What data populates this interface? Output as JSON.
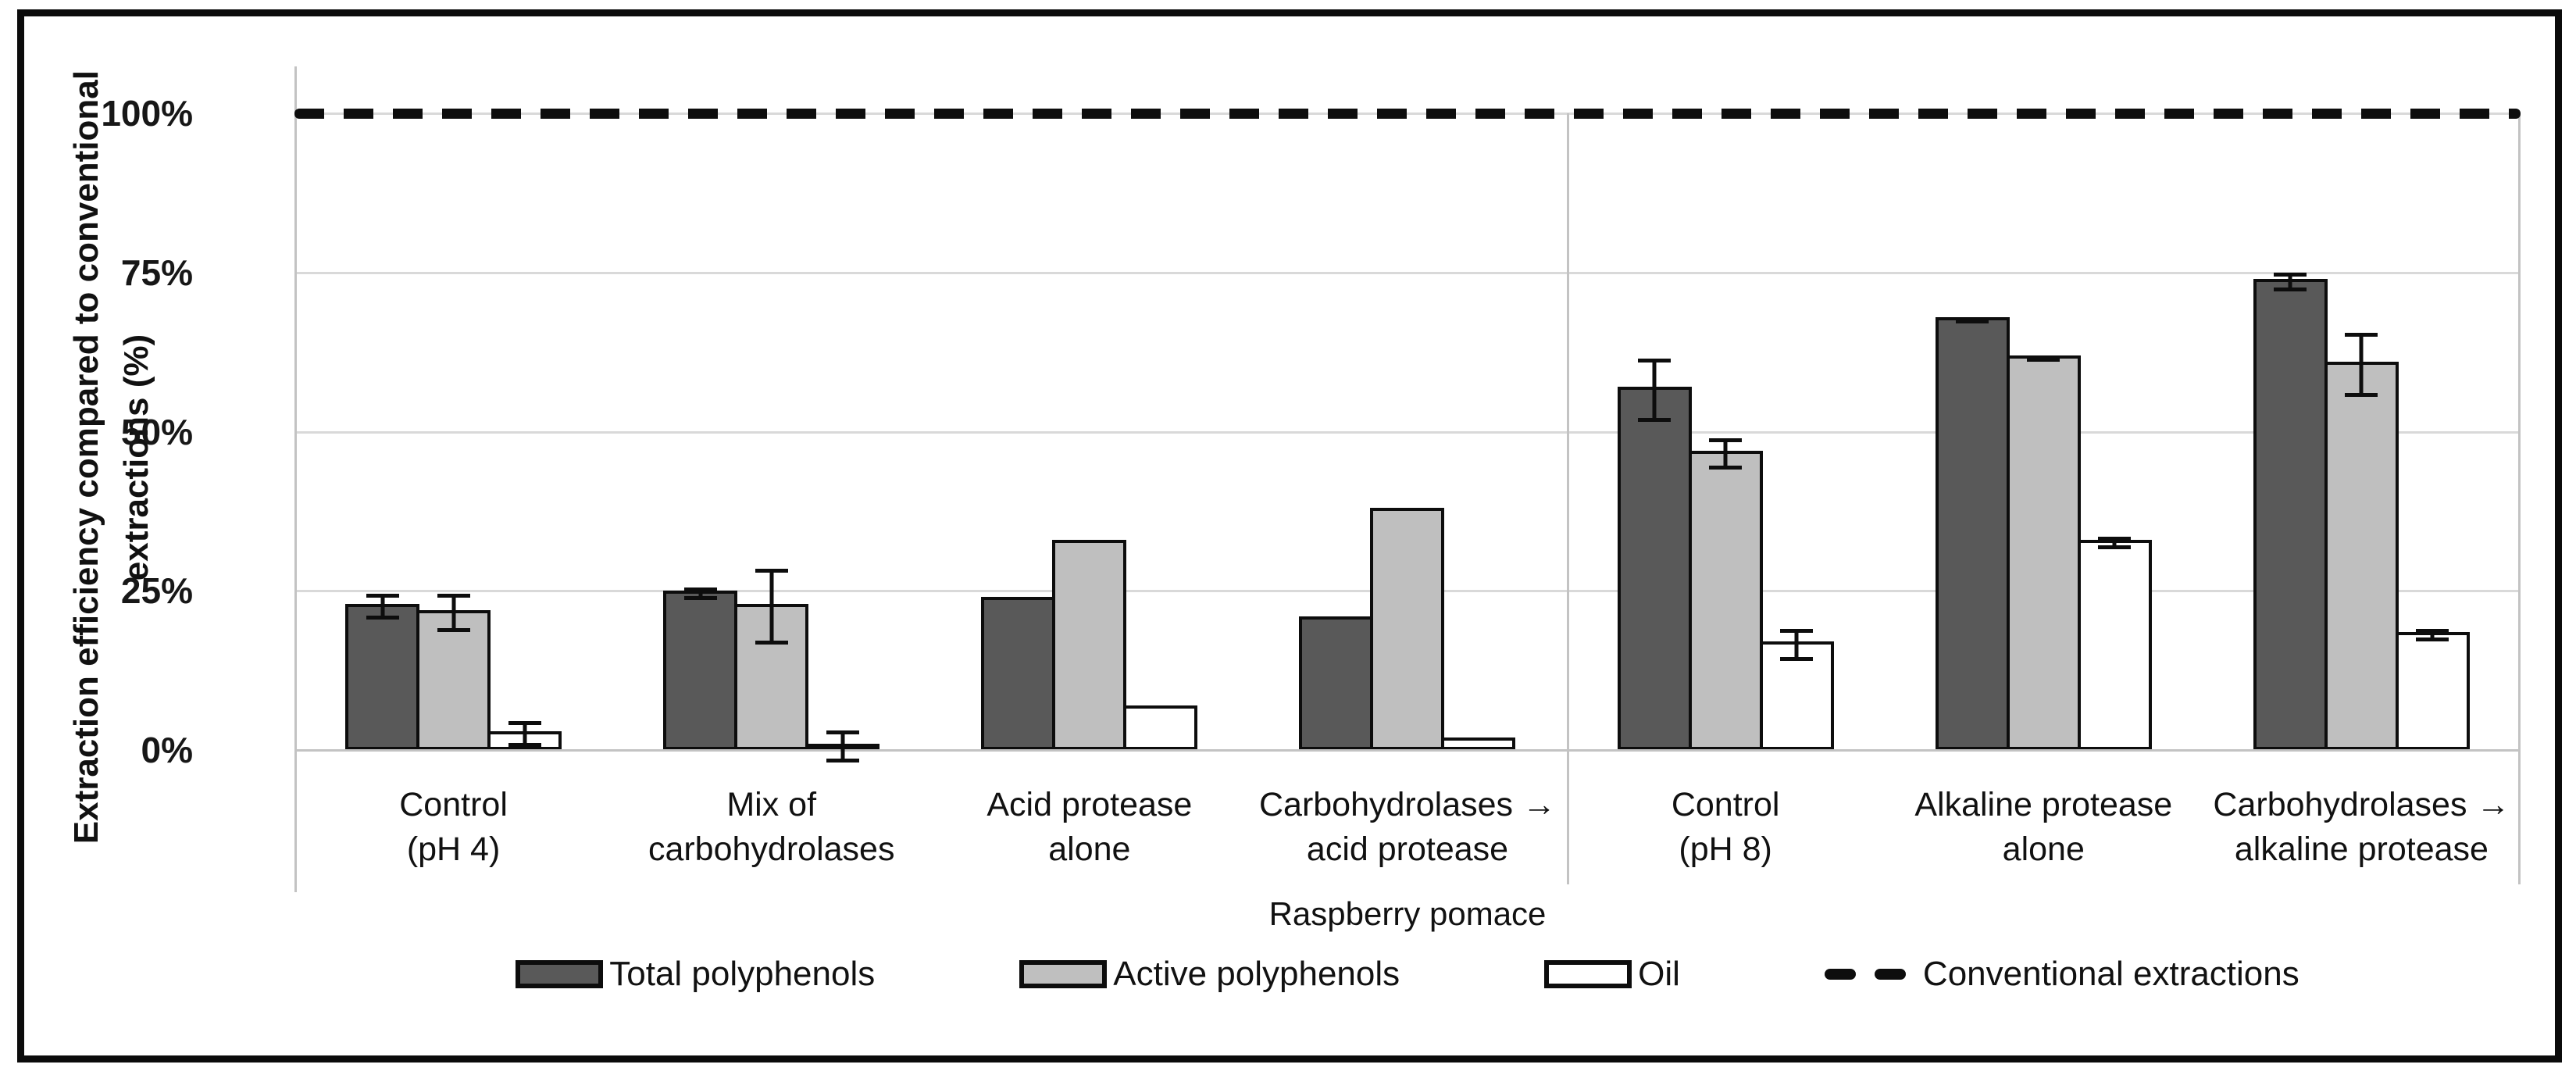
{
  "figure": {
    "y_axis_title_line1": "Extraction efficiency compared to conventional",
    "y_axis_title_line2": "extractions (%)",
    "x_axis_title": "Raspberry pomace"
  },
  "axis": {
    "ticks": [
      {
        "label": "100%",
        "value": 100
      },
      {
        "label": "75%",
        "value": 75
      },
      {
        "label": "50%",
        "value": 50
      },
      {
        "label": "25%",
        "value": 25
      },
      {
        "label": "0%",
        "value": 0
      }
    ]
  },
  "legend": {
    "items": [
      {
        "label": "Total polyphenols",
        "marker": "swatch",
        "color": "#595959"
      },
      {
        "label": "Active polyphenols",
        "marker": "swatch",
        "color": "#BFBFBF"
      },
      {
        "label": "Oil",
        "marker": "swatch",
        "color": "#FFFFFF"
      },
      {
        "label": "Conventional extractions",
        "marker": "dash",
        "color": "#0d0d0d"
      }
    ]
  },
  "chart_data": {
    "type": "bar",
    "title": "",
    "xlabel": "Raspberry pomace",
    "ylabel": "Extraction efficiency compared to conventional extractions (%)",
    "ylim": [
      0,
      108
    ],
    "grid": true,
    "gridlines_pct": [
      0,
      25,
      50,
      75,
      100
    ],
    "legend_position": "bottom",
    "reference_line": {
      "value": 100,
      "style": "dashed",
      "label": "Conventional extractions"
    },
    "group_separator_after_index": 3,
    "categories": [
      "Control (pH 4)",
      "Mix of carbohydrolases",
      "Acid protease alone",
      "Carbohydrolases → acid protease",
      "Control (pH 8)",
      "Alkaline protease alone",
      "Carbohydrolases → alkaline protease"
    ],
    "categories_lines": [
      [
        "Control",
        "(pH 4)"
      ],
      [
        "Mix of",
        "carbohydrolases"
      ],
      [
        "Acid protease",
        "alone"
      ],
      [
        "Carbohydrolases →",
        "acid protease"
      ],
      [
        "Control",
        "(pH 8)"
      ],
      [
        "Alkaline protease",
        "alone"
      ],
      [
        "Carbohydrolases →",
        "alkaline protease"
      ]
    ],
    "series": [
      {
        "name": "Total polyphenols",
        "color": "#595959",
        "values": [
          23,
          25,
          24,
          21,
          57,
          68,
          74
        ],
        "errors": [
          2,
          1,
          0,
          0,
          5,
          0.5,
          1.5
        ]
      },
      {
        "name": "Active polyphenols",
        "color": "#BFBFBF",
        "values": [
          22,
          23,
          33,
          38,
          47,
          62,
          61
        ],
        "errors": [
          3,
          6,
          0,
          0,
          2.5,
          0.5,
          5
        ]
      },
      {
        "name": "Oil",
        "color": "#FFFFFF",
        "values": [
          3,
          1,
          7,
          2,
          17,
          33,
          18.5
        ],
        "errors": [
          2,
          2.5,
          0,
          0,
          2.5,
          1,
          1
        ]
      }
    ]
  }
}
